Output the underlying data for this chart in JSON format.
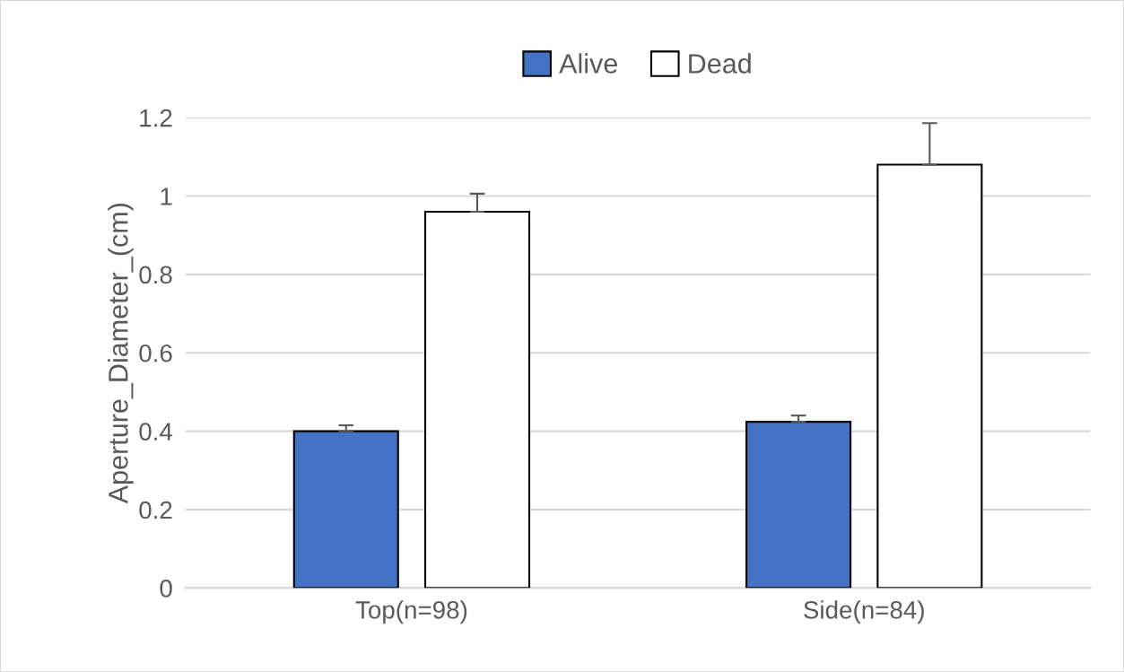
{
  "chart_data": {
    "type": "bar",
    "ylabel": "Aperture_Diameter_(cm)",
    "categories": [
      "Top(n=98)",
      "Side(n=84)"
    ],
    "series": [
      {
        "name": "Alive",
        "color": "#4472c4",
        "values": [
          0.4,
          0.424
        ],
        "errors": [
          [
            0.4,
            0.415
          ],
          [
            0.424,
            0.44
          ]
        ]
      },
      {
        "name": "Dead",
        "color": "#ffffff",
        "values": [
          0.96,
          1.08
        ],
        "errors": [
          [
            0.96,
            1.006
          ],
          [
            1.08,
            1.186
          ]
        ]
      }
    ],
    "ylim": [
      0,
      1.2
    ],
    "yticks": [
      0,
      0.2,
      0.4,
      0.6,
      0.8,
      1,
      1.2
    ],
    "grid": "y",
    "legend": "top"
  }
}
